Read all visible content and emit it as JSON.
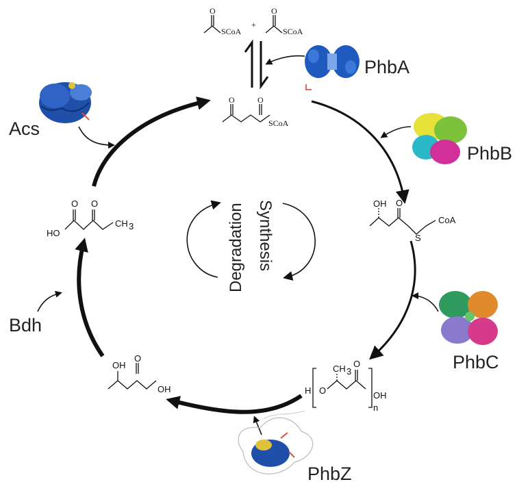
{
  "enzymes": {
    "phba": "PhbA",
    "phbb": "PhbB",
    "phbc": "PhbC",
    "phbz": "PhbZ",
    "bdh": "Bdh",
    "acs": "Acs"
  },
  "center": {
    "degradation": "Degradation",
    "synthesis": "Synthesis"
  },
  "chem": {
    "o": "O",
    "scoa": "SCoA",
    "plus": "+",
    "oh": "OH",
    "ho": "HO",
    "ch3": "CH",
    "sub3": "3",
    "s": "S",
    "coa": "CoA",
    "h": "H",
    "n": "n"
  },
  "colors": {
    "arrow": "#111111",
    "protein_blue": "#1f4fa8",
    "text": "#222222"
  }
}
